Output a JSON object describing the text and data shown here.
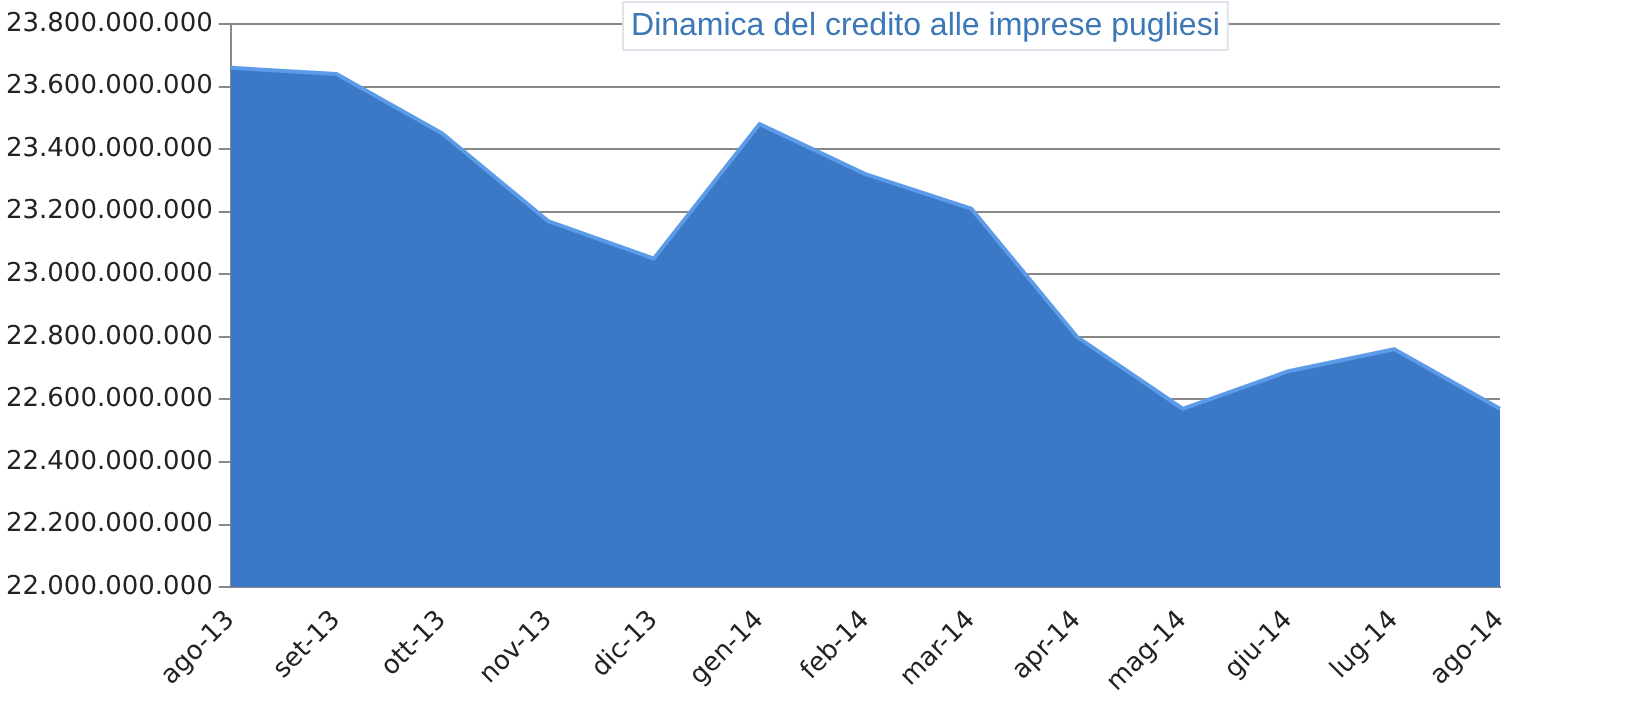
{
  "chart_data": {
    "type": "area",
    "title": "Dinamica del credito alle imprese pugliesi",
    "categories": [
      "ago-13",
      "set-13",
      "ott-13",
      "nov-13",
      "dic-13",
      "gen-14",
      "feb-14",
      "mar-14",
      "apr-14",
      "mag-14",
      "giu-14",
      "lug-14",
      "ago-14"
    ],
    "series": [
      {
        "color": "#3b78c6",
        "values": [
          23660000000,
          23640000000,
          23450000000,
          23170000000,
          23050000000,
          23480000000,
          23320000000,
          23210000000,
          22800000000,
          22570000000,
          22690000000,
          22760000000,
          22570000000
        ]
      }
    ],
    "ylim": [
      22000000000,
      23800000000
    ],
    "yticks": [
      {
        "value": 22000000000,
        "label": "22.000.000.000"
      },
      {
        "value": 22200000000,
        "label": "22.200.000.000"
      },
      {
        "value": 22400000000,
        "label": "22.400.000.000"
      },
      {
        "value": 22600000000,
        "label": "22.600.000.000"
      },
      {
        "value": 22800000000,
        "label": "22.800.000.000"
      },
      {
        "value": 23000000000,
        "label": "23.000.000.000"
      },
      {
        "value": 23200000000,
        "label": "23.200.000.000"
      },
      {
        "value": 23400000000,
        "label": "23.400.000.000"
      },
      {
        "value": 23600000000,
        "label": "23.600.000.000"
      },
      {
        "value": 23800000000,
        "label": "23.800.000.000"
      }
    ],
    "grid": "y",
    "legend": false
  }
}
